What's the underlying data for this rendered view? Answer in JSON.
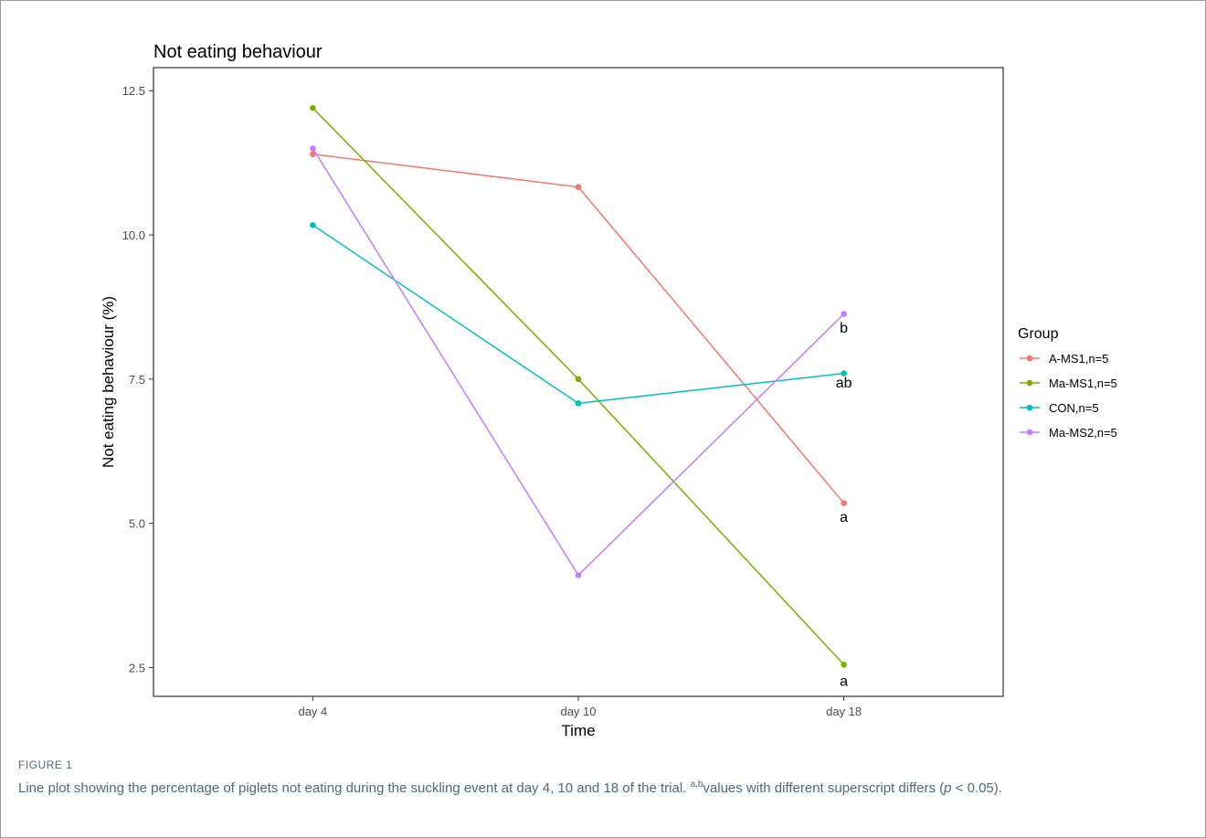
{
  "chart_data": {
    "type": "line",
    "title": "Not eating behaviour",
    "xlabel": "Time",
    "ylabel": "Not eating behaviour (%)",
    "categories": [
      "day 4",
      "day 10",
      "day 18"
    ],
    "ylim": [
      2.0,
      12.9
    ],
    "yticks": [
      2.5,
      5.0,
      7.5,
      10.0,
      12.5
    ],
    "ytick_labels": [
      "2.5",
      "5.0",
      "7.5",
      "10.0",
      "12.5"
    ],
    "grid": false,
    "legend_title": "Group",
    "legend_position": "right",
    "series": [
      {
        "name": "A-MS1,n=5",
        "color": "#F8766D",
        "values": [
          11.4,
          10.83,
          5.35
        ]
      },
      {
        "name": "Ma-MS1,n=5",
        "color": "#7CAE00",
        "values": [
          12.2,
          7.5,
          2.55
        ]
      },
      {
        "name": "CON,n=5",
        "color": "#00BFC4",
        "values": [
          10.17,
          7.08,
          7.6
        ]
      },
      {
        "name": "Ma-MS2,n=5",
        "color": "#C77CFF",
        "values": [
          11.5,
          4.1,
          8.63
        ]
      }
    ],
    "annotations": [
      {
        "text": "b",
        "x": "day 18",
        "y": 8.4
      },
      {
        "text": "ab",
        "x": "day 18",
        "y": 7.45
      },
      {
        "text": "a",
        "x": "day 18",
        "y": 5.12
      },
      {
        "text": "a",
        "x": "day 18",
        "y": 2.28
      }
    ]
  },
  "caption": {
    "label": "FIGURE 1",
    "text_before": "Line plot showing the percentage of piglets not eating during the suckling event at day 4, 10 and 18 of the trial. ",
    "superscript": "a,b",
    "text_middle": "values with different superscript differs (",
    "p_symbol": "p",
    "text_after": " < 0.05)."
  }
}
